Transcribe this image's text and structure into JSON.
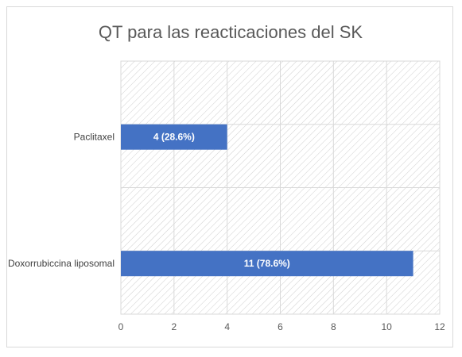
{
  "chart_data": {
    "type": "bar",
    "orientation": "horizontal",
    "title": "QT para las reacticaciones del SK",
    "categories": [
      "Paclitaxel",
      "Doxorrubiccina liposomal"
    ],
    "values": [
      4,
      11
    ],
    "data_labels": [
      "4 (28.6%)",
      "11 (78.6%)"
    ],
    "x_ticks": [
      "0",
      "2",
      "4",
      "6",
      "8",
      "10",
      "12"
    ],
    "xlim": [
      0,
      12
    ],
    "xlabel": "",
    "ylabel": "",
    "grid": true,
    "legend": "none",
    "bar_color": "#4472c4",
    "plot_fill": "hatched"
  }
}
